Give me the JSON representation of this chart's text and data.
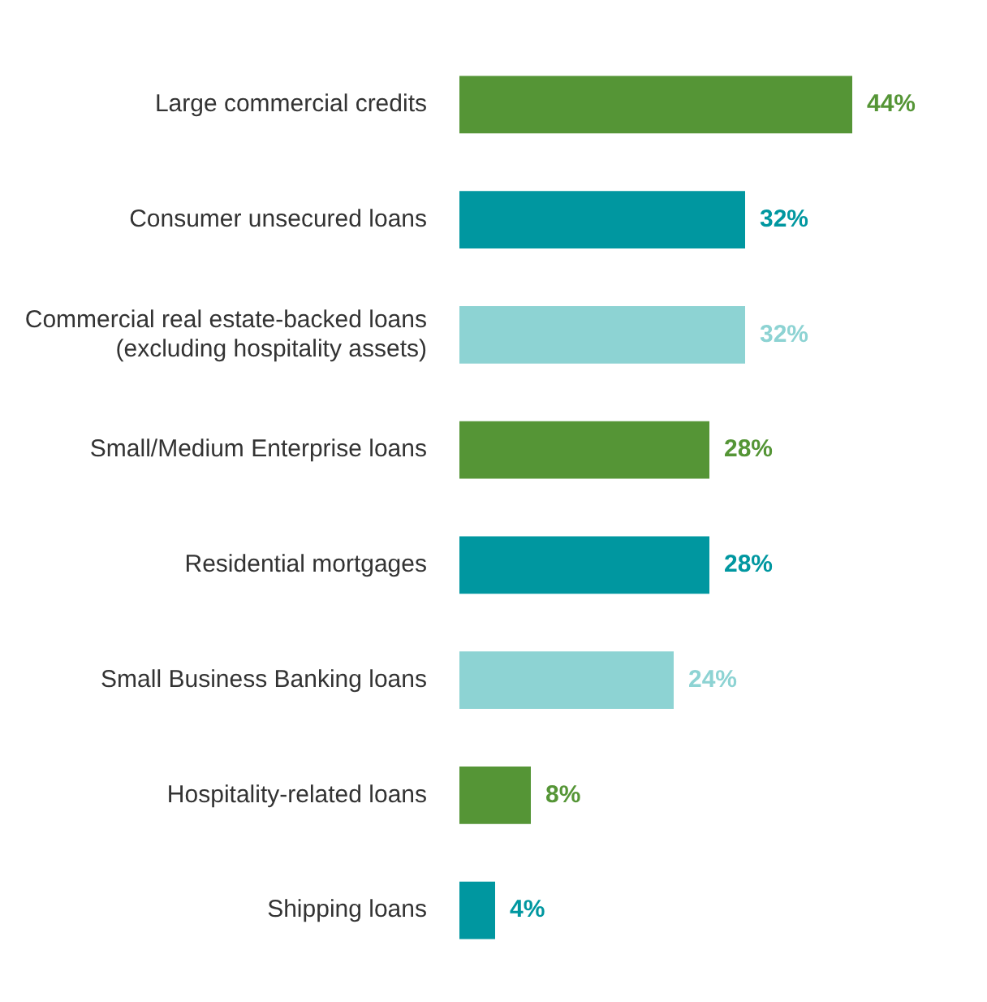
{
  "chart_data": {
    "type": "bar",
    "orientation": "horizontal",
    "categories": [
      "Large commercial credits",
      "Consumer unsecured loans",
      "Commercial real estate-backed loans\n(excluding hospitality assets)",
      "Small/Medium Enterprise loans",
      "Residential mortgages",
      "Small Business Banking loans",
      "Hospitality-related loans",
      "Shipping loans"
    ],
    "values": [
      44,
      32,
      32,
      28,
      28,
      24,
      8,
      4
    ],
    "colors": [
      "#559536",
      "#0097a0",
      "#8dd3d3",
      "#559536",
      "#0097a0",
      "#8dd3d3",
      "#559536",
      "#0097a0"
    ],
    "value_labels": [
      "44%",
      "32%",
      "32%",
      "28%",
      "28%",
      "24%",
      "8%",
      "4%"
    ],
    "legend": false
  }
}
